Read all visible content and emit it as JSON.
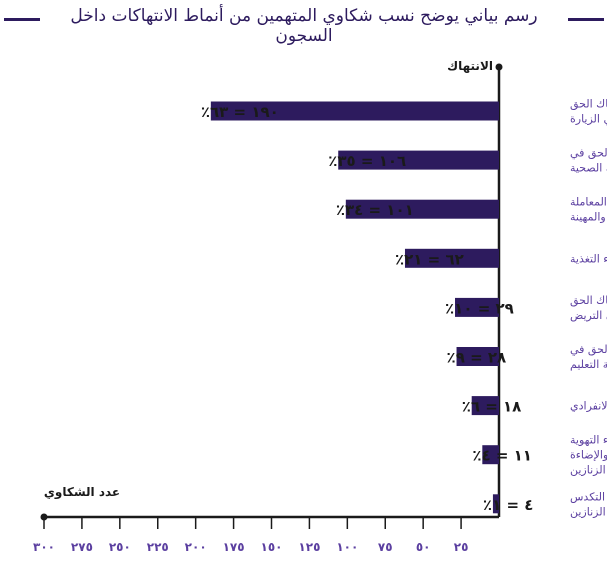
{
  "title": "رسم بياني يوضح نسب شكاوي المتهمين من أنماط الانتهاكات داخل السجون",
  "colors": {
    "bar": "#2d1b5e",
    "title": "#2d1b5e",
    "category": "#5b3fa0",
    "axis": "#1a1a1a"
  },
  "chart_data": {
    "type": "bar",
    "orientation": "horizontal",
    "direction": "right-to-left",
    "title": "رسم بياني يوضح نسب شكاوي المتهمين من أنماط الانتهاكات داخل السجون",
    "ylabel": "الانتهاك",
    "xlabel": "عدد الشكاوي",
    "xlim": [
      0,
      300
    ],
    "xticks": [
      25,
      50,
      75,
      100,
      125,
      150,
      175,
      200,
      225,
      250,
      275,
      300
    ],
    "xtick_labels": [
      "٢٥",
      "٥٠",
      "٧٥",
      "١٠٠",
      "١٢٥",
      "١٥٠",
      "١٧٥",
      "٢٠٠",
      "٢٢٥",
      "٢٥٠",
      "٢٧٥",
      "٣٠٠"
    ],
    "grid": false,
    "categories": [
      [
        "انتهاك الحق",
        "في الزيارة"
      ],
      [
        "انتهاك الحق في",
        "الرعاية الصحية"
      ],
      [
        "المعاملة",
        "القاسية والمهينة"
      ],
      [
        "سوء التغذية"
      ],
      [
        "انتهاك الحق",
        "في التريض"
      ],
      [
        "انتهاك الحق في",
        "مواصلة التعليم"
      ],
      [
        "الحبس الانفرادي"
      ],
      [
        "سوء التهوية",
        "والإضاءة",
        "في الزنازين"
      ],
      [
        "التكدس",
        "داخل الزنازين"
      ]
    ],
    "values": [
      190,
      106,
      101,
      62,
      29,
      28,
      18,
      11,
      4
    ],
    "data_labels": [
      "١٩٠ = ٦٣٪",
      "١٠٦ = ٣٥٪",
      "١٠١ = ٣٤٪",
      "٦٢ = ٢١٪",
      "٢٩ = ١٠٪",
      "٢٨ = ٩٪",
      "١٨ = ٦٪",
      "١١ = ٤٪",
      "٤ = ١٪"
    ]
  }
}
